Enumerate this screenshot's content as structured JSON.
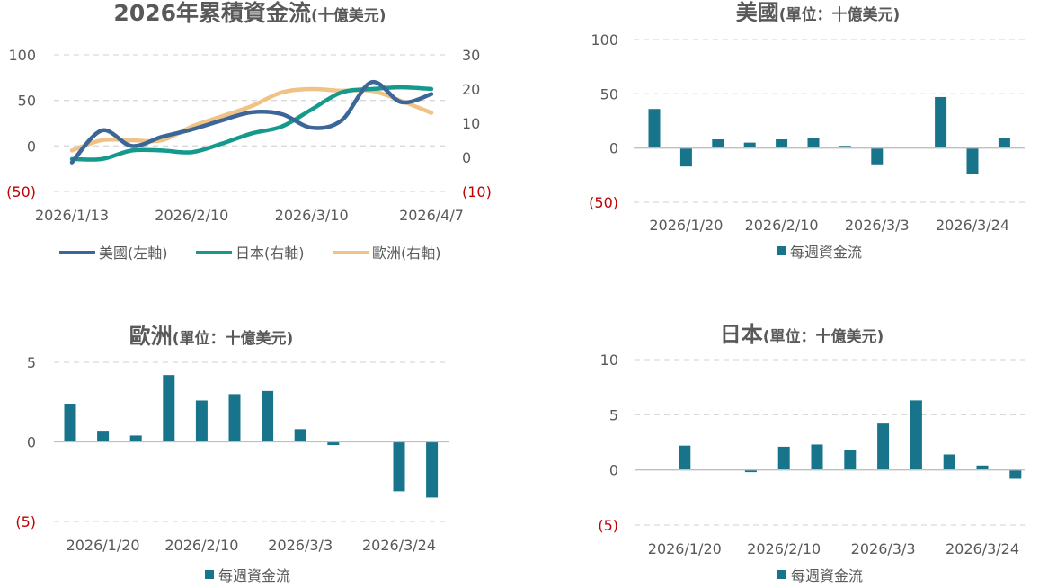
{
  "charts": [
    {
      "id": "cumulative",
      "title_main": "2026年累積資金流",
      "title_sub": "(十億美元)",
      "y_left_ticks": [
        "100",
        "50",
        "0",
        "(50)"
      ],
      "y_right_ticks": [
        "30",
        "20",
        "10",
        "0",
        "(10)"
      ],
      "x_ticks": [
        "2026/1/13",
        "2026/2/10",
        "2026/3/10",
        "2026/4/7"
      ],
      "legend": [
        "美國(左軸)",
        "日本(右軸)",
        "歐洲(右軸)"
      ]
    },
    {
      "id": "us",
      "title_main": "美國",
      "title_sub": "(單位：十億美元)",
      "y_ticks": [
        "100",
        "50",
        "0",
        "(50)"
      ],
      "x_ticks": [
        "2026/1/20",
        "2026/2/10",
        "2026/3/3",
        "2026/3/24"
      ],
      "legend": [
        "每週資金流"
      ]
    },
    {
      "id": "europe",
      "title_main": "歐洲",
      "title_sub": "(單位：十億美元)",
      "y_ticks": [
        "5",
        "0",
        "(5)"
      ],
      "x_ticks": [
        "2026/1/20",
        "2026/2/10",
        "2026/3/3",
        "2026/3/24"
      ],
      "legend": [
        "每週資金流"
      ]
    },
    {
      "id": "japan",
      "title_main": "日本",
      "title_sub": "(單位：十億美元)",
      "y_ticks": [
        "10",
        "5",
        "0",
        "(5)"
      ],
      "x_ticks": [
        "2026/1/20",
        "2026/2/10",
        "2026/3/3",
        "2026/3/24"
      ],
      "legend": [
        "每週資金流"
      ]
    }
  ],
  "colors": {
    "us": "#3d6698",
    "japan": "#14998c",
    "europe": "#efc285",
    "bar": "#17748a",
    "negative_label": "#c00000"
  },
  "chart_data": [
    {
      "type": "line",
      "x": [
        "2026/1/13",
        "2026/1/20",
        "2026/1/27",
        "2026/2/3",
        "2026/2/10",
        "2026/2/17",
        "2026/2/24",
        "2026/3/3",
        "2026/3/10",
        "2026/3/17",
        "2026/3/24",
        "2026/3/31",
        "2026/4/7"
      ],
      "series": [
        {
          "name": "美國(左軸)",
          "axis": "left",
          "values": [
            -18,
            17,
            0,
            10,
            18,
            28,
            37,
            35,
            20,
            28,
            70,
            48,
            57
          ]
        },
        {
          "name": "日本(右軸)",
          "axis": "right",
          "values": [
            -0.5,
            -0.5,
            2,
            2,
            1.5,
            4,
            7,
            9,
            14,
            19,
            20,
            20.5,
            20
          ]
        },
        {
          "name": "歐洲(右軸)",
          "axis": "right",
          "values": [
            2,
            5,
            5,
            5,
            9,
            12,
            15,
            19,
            20,
            19.5,
            19.5,
            16.5,
            13
          ]
        }
      ],
      "ylim_left": [
        -50,
        100
      ],
      "ylim_right": [
        -10,
        30
      ],
      "grid": true,
      "legend_position": "bottom"
    },
    {
      "type": "bar",
      "categories": [
        "2026/1/13",
        "2026/1/20",
        "2026/1/27",
        "2026/2/3",
        "2026/2/10",
        "2026/2/17",
        "2026/2/24",
        "2026/3/3",
        "2026/3/10",
        "2026/3/17",
        "2026/3/24",
        "2026/3/31",
        "2026/4/7"
      ],
      "series": [
        {
          "name": "每週資金流",
          "values": [
            36,
            -17,
            8,
            5,
            8,
            9,
            2,
            -15,
            1,
            47,
            -24,
            9,
            null
          ]
        }
      ],
      "ylim": [
        -50,
        100
      ],
      "grid": true,
      "legend_position": "bottom"
    },
    {
      "type": "bar",
      "categories": [
        "2026/1/13",
        "2026/1/20",
        "2026/1/27",
        "2026/2/3",
        "2026/2/10",
        "2026/2/17",
        "2026/2/24",
        "2026/3/3",
        "2026/3/10",
        "2026/3/17",
        "2026/3/24",
        "2026/3/31"
      ],
      "series": [
        {
          "name": "每週資金流",
          "values": [
            2.4,
            0.7,
            0.4,
            4.2,
            2.6,
            3.0,
            3.2,
            0.8,
            -0.2,
            null,
            -3.1,
            -3.5
          ]
        }
      ],
      "ylim": [
        -5,
        5
      ],
      "grid": true,
      "legend_position": "bottom"
    },
    {
      "type": "bar",
      "categories": [
        "2026/1/13",
        "2026/1/20",
        "2026/1/27",
        "2026/2/3",
        "2026/2/10",
        "2026/2/17",
        "2026/2/24",
        "2026/3/3",
        "2026/3/10",
        "2026/3/17",
        "2026/3/24",
        "2026/3/31",
        "2026/4/7"
      ],
      "series": [
        {
          "name": "每週資金流",
          "values": [
            null,
            2.2,
            null,
            -0.2,
            2.1,
            2.3,
            1.8,
            4.2,
            6.3,
            1.4,
            0.4,
            -0.8,
            null
          ]
        }
      ],
      "ylim": [
        -5,
        10
      ],
      "grid": true,
      "legend_position": "bottom"
    }
  ]
}
